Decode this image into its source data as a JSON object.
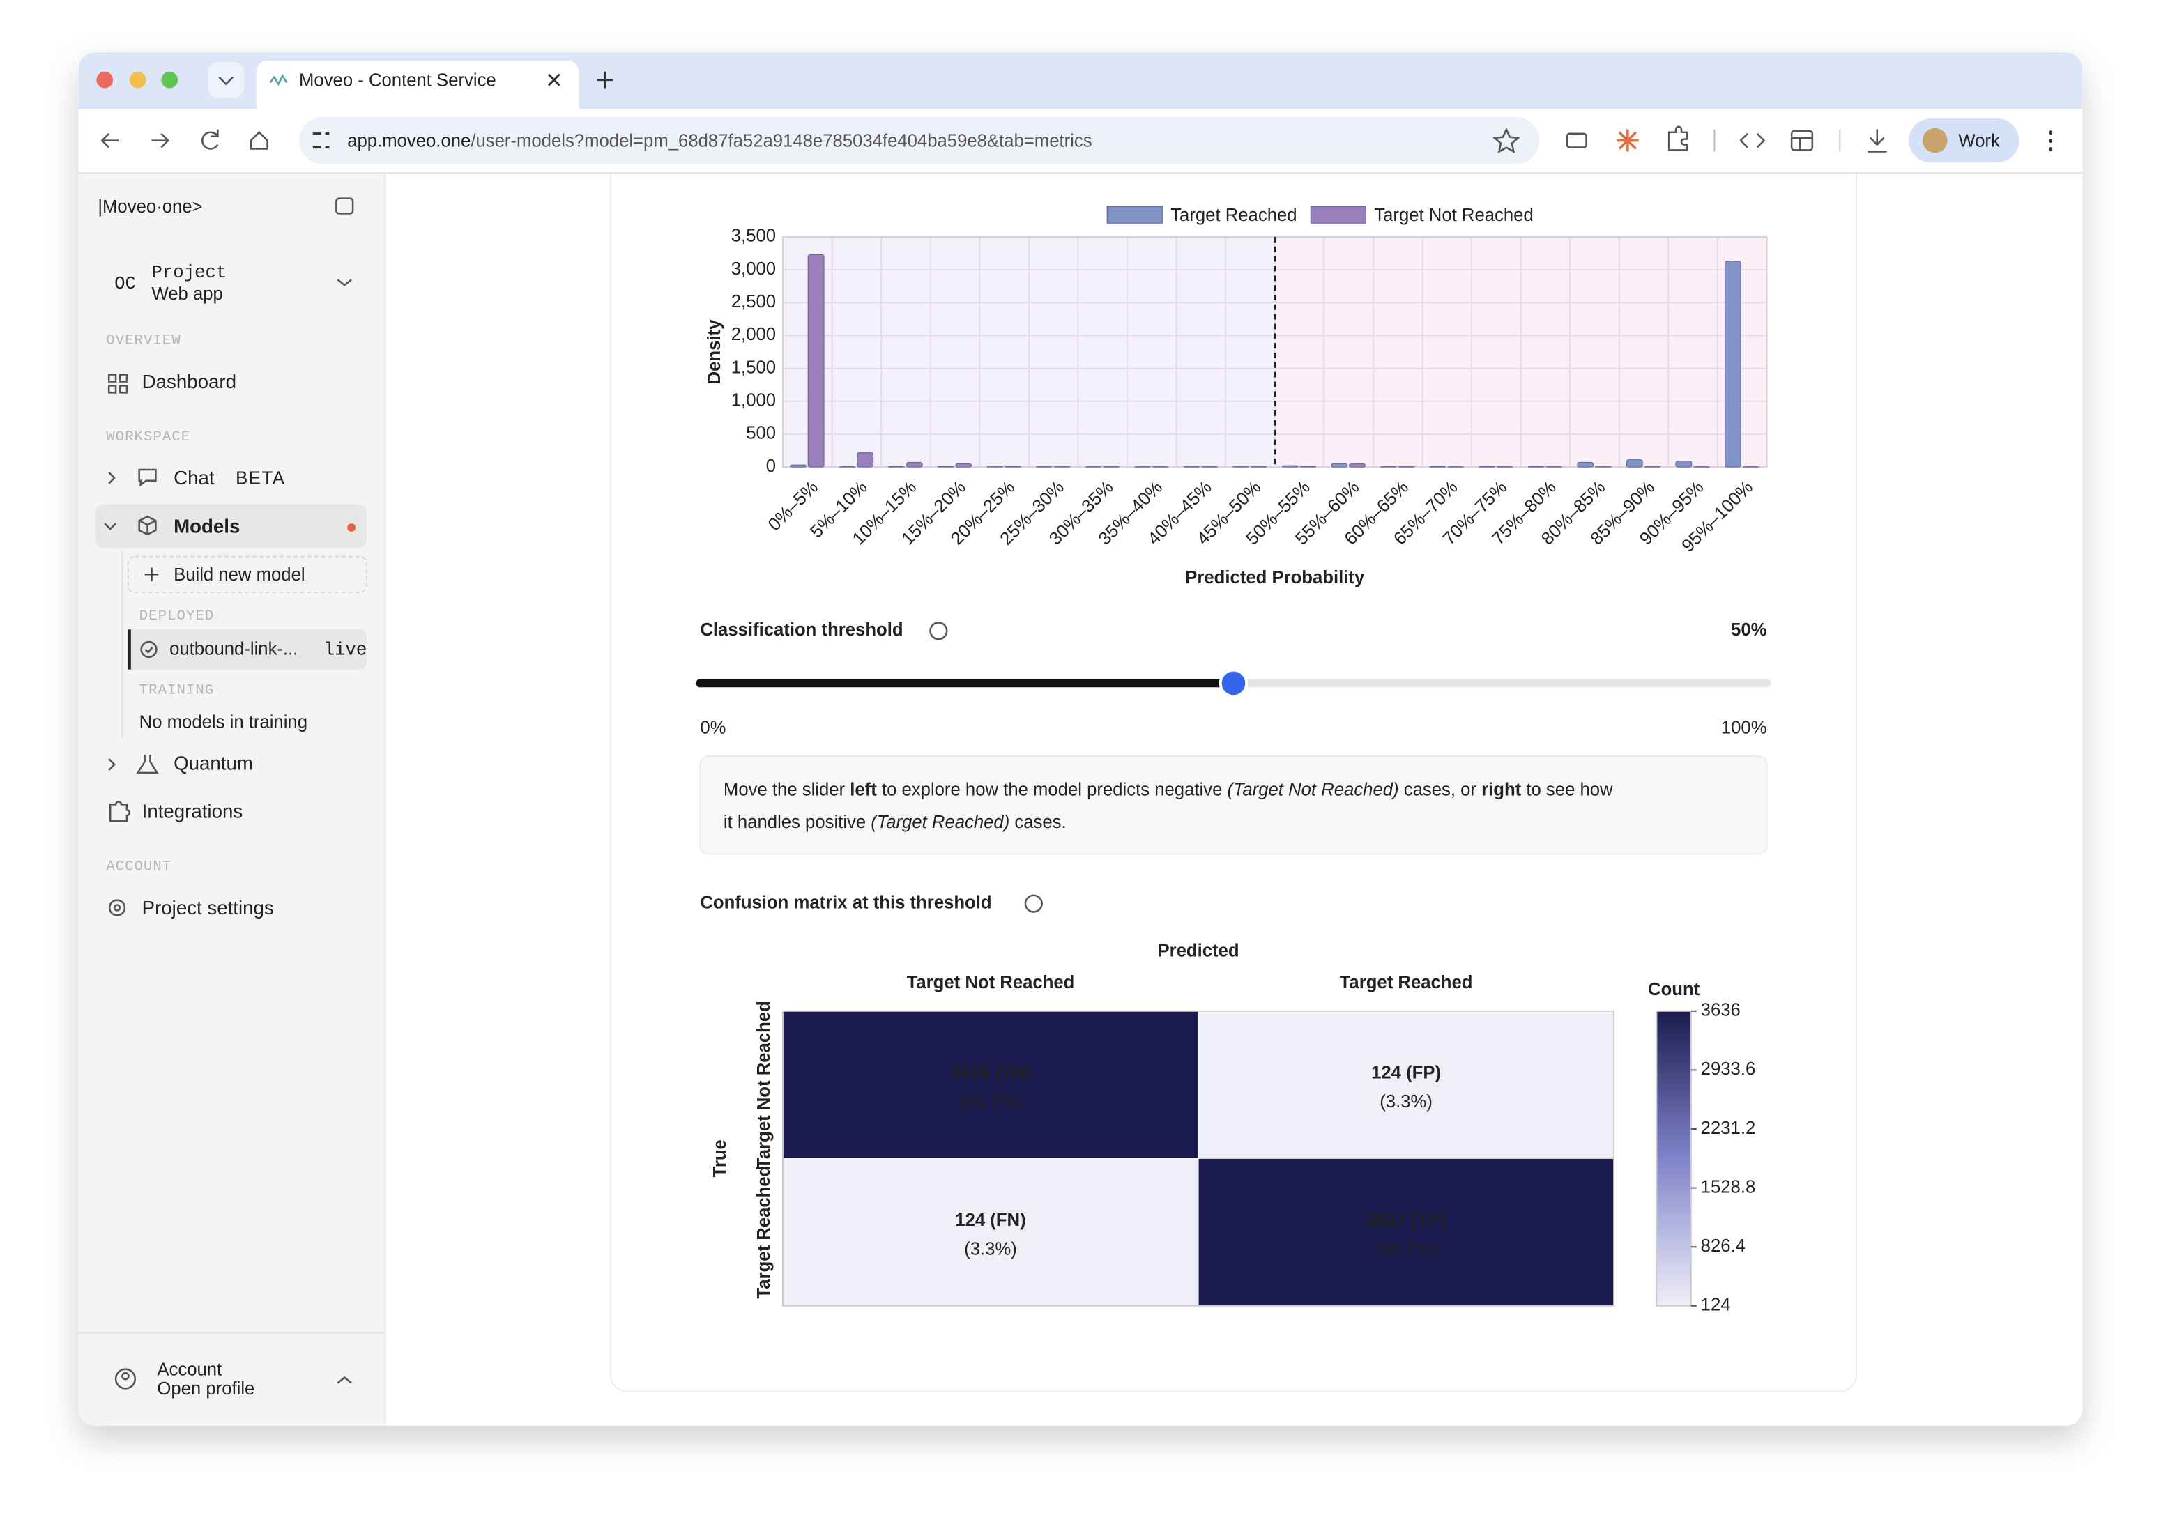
{
  "browser": {
    "tab_title": "Moveo - Content Service",
    "url_host": "app.moveo.one",
    "url_path": "/user-models?model=pm_68d87fa52a9148e785034fe404ba59e8&tab=metrics",
    "profile": "Work"
  },
  "sidebar": {
    "logo": "|Moveo·one>",
    "project_initials": "OC",
    "project_label": "Project",
    "project_name": "Web app",
    "overview": "OVERVIEW",
    "dashboard": "Dashboard",
    "workspace": "WORKSPACE",
    "chat": "Chat",
    "chat_badge": "BETA",
    "models": "Models",
    "build_new_model": "Build new model",
    "deployed": "DEPLOYED",
    "deployed_model": "outbound-link-...",
    "deployed_status": "live",
    "training": "TRAINING",
    "training_empty": "No models in training",
    "quantum": "Quantum",
    "integrations": "Integrations",
    "account_section": "ACCOUNT",
    "project_settings": "Project settings",
    "account": "Account",
    "account_sub": "Open profile"
  },
  "chart_data": {
    "type": "bar",
    "x_label": "Predicted Probability",
    "y_label": "Density",
    "categories": [
      "0%–5%",
      "5%–10%",
      "10%–15%",
      "15%–20%",
      "20%–25%",
      "25%–30%",
      "30%–35%",
      "35%–40%",
      "40%–45%",
      "45%–50%",
      "50%–55%",
      "55%–60%",
      "60%–65%",
      "65%–70%",
      "70%–75%",
      "75%–80%",
      "80%–85%",
      "85%–90%",
      "90%–95%",
      "95%–100%"
    ],
    "series": [
      {
        "name": "Target Reached",
        "color": "#7f93c7",
        "values": [
          30,
          5,
          5,
          5,
          3,
          3,
          3,
          3,
          3,
          3,
          20,
          50,
          5,
          10,
          10,
          10,
          70,
          110,
          90,
          3130
        ]
      },
      {
        "name": "Target Not Reached",
        "color": "#9a7fbd",
        "values": [
          3230,
          220,
          70,
          50,
          5,
          3,
          3,
          3,
          3,
          3,
          5,
          50,
          3,
          3,
          3,
          3,
          3,
          3,
          3,
          3
        ]
      }
    ],
    "ylim": [
      0,
      3500
    ],
    "yticks": [
      0,
      500,
      {
        "value": 1000,
        "label": "1,000"
      },
      {
        "value": 1500,
        "label": "1,500"
      },
      {
        "value": 2000,
        "label": "2,000"
      },
      {
        "value": 2500,
        "label": "2,500"
      },
      {
        "value": 3000,
        "label": "3,000"
      },
      {
        "value": 3500,
        "label": "3,500"
      }
    ],
    "grid": true,
    "legend": "top",
    "background_colors": [
      "#f5f1fa",
      "#fbf0f8"
    ]
  },
  "threshold": {
    "label": "Classification threshold",
    "value": 50,
    "value_label": "50%",
    "min": {
      "value": 0,
      "label": "0%"
    },
    "max": {
      "value": 100,
      "label": "100%"
    },
    "info_lines": [
      [
        {
          "text": "Move the slider "
        },
        {
          "text": "left",
          "style": "bold"
        },
        {
          "text": " to explore how the model predicts negative "
        },
        {
          "text": "(Target Not Reached)",
          "style": "italic"
        },
        {
          "text": " cases, or "
        },
        {
          "text": "right",
          "style": "bold"
        },
        {
          "text": " to see how"
        }
      ],
      [
        {
          "text": "it handles positive "
        },
        {
          "text": "(Target Reached)",
          "style": "italic"
        },
        {
          "text": " cases."
        }
      ]
    ]
  },
  "confusion_matrix": {
    "title": "Confusion matrix at this threshold",
    "x_title": "Predicted",
    "y_title": "True",
    "columns": [
      "Target Not Reached",
      "Target Reached"
    ],
    "rows": [
      "Target Not Reached",
      "Target Reached"
    ],
    "cells": [
      [
        {
          "value": 3636,
          "value_label": "3636 (TN)",
          "percent_label": "(96.7%)"
        },
        {
          "value": 124,
          "value_label": "124 (FP)",
          "percent_label": "(3.3%)"
        }
      ],
      [
        {
          "value": 124,
          "value_label": "124 (FN)",
          "percent_label": "(3.3%)"
        },
        {
          "value": 3627,
          "value_label": "3627 (TP)",
          "percent_label": "(96.7%)"
        }
      ]
    ],
    "colorbar_title": "Count",
    "clim": [
      124,
      3636
    ],
    "colorbar_ticks": [
      3636,
      2933.6,
      2231.2,
      1528.8,
      826.4,
      124
    ],
    "colorscale": [
      "#efeff8",
      "#8083c9",
      "#1b1b4f"
    ]
  }
}
